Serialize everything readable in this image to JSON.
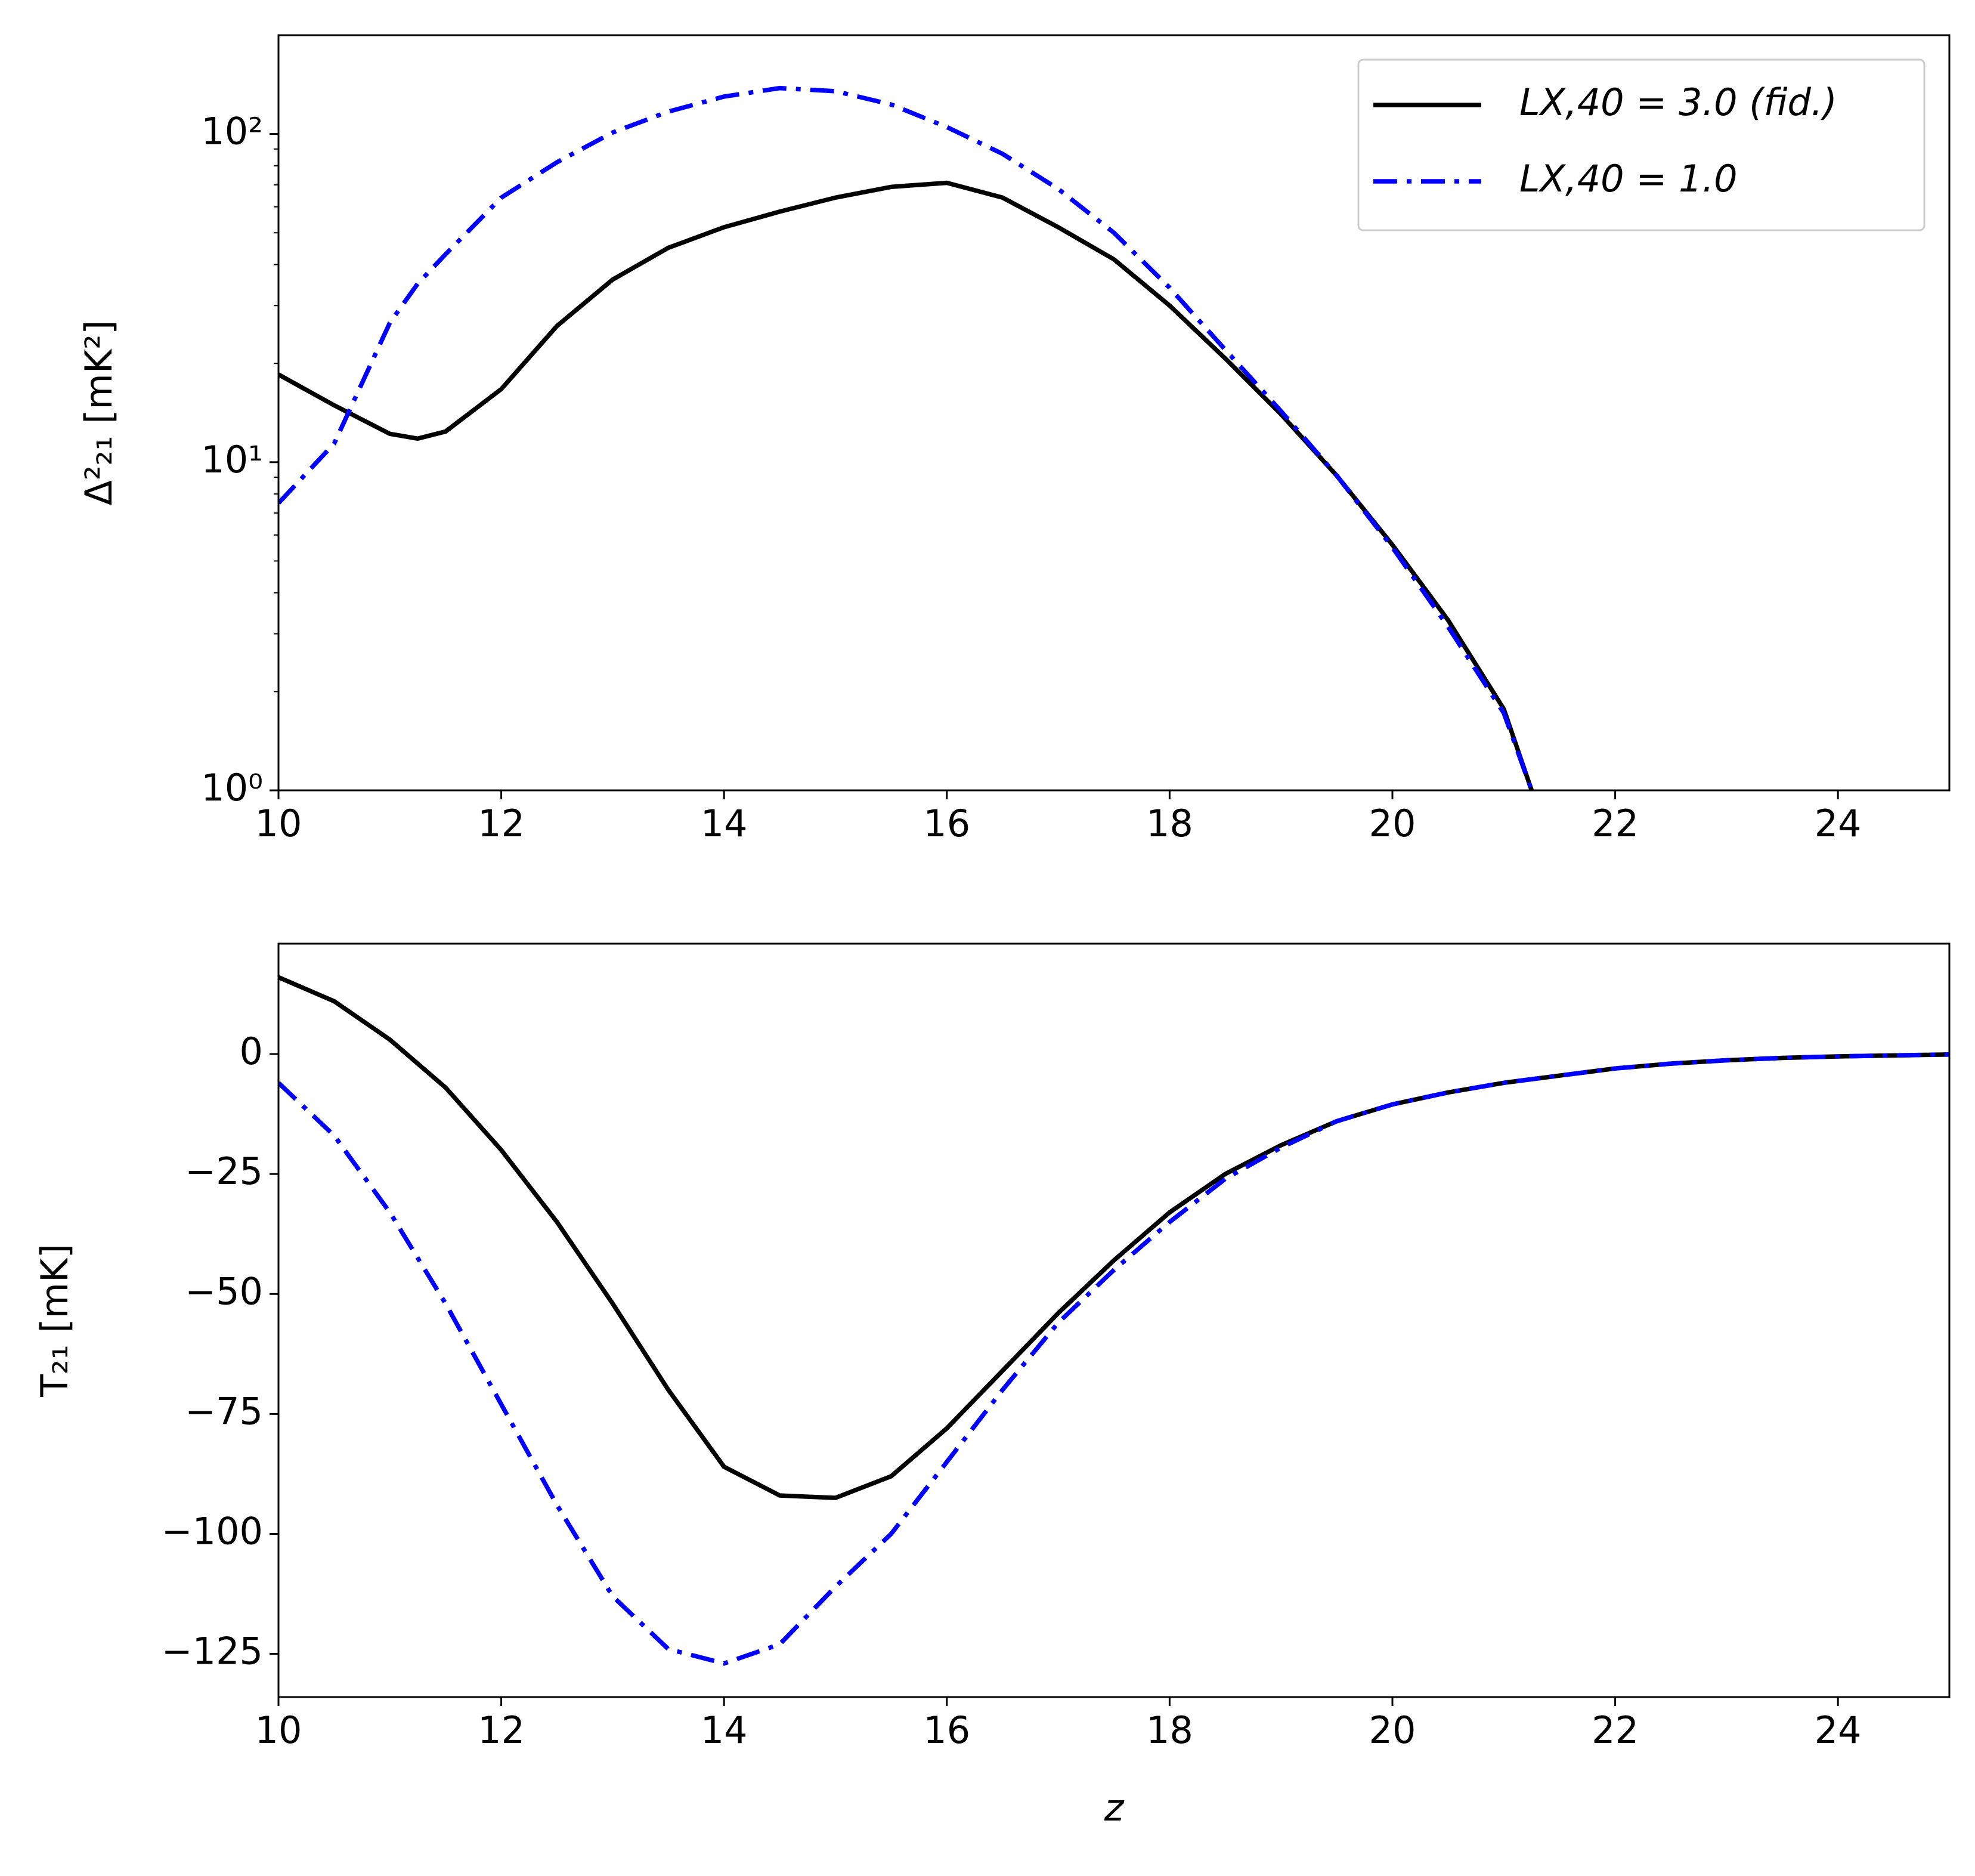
{
  "chart_data": [
    {
      "type": "line",
      "log_y": true,
      "legend": "upper right",
      "ylabel": "Δ²₂₁ [mK²]",
      "x": [
        10,
        10.5,
        11,
        11.25,
        11.5,
        12,
        12.5,
        13,
        13.5,
        14,
        14.5,
        15,
        15.5,
        16,
        16.5,
        17,
        17.5,
        18,
        18.5,
        19,
        19.5,
        20,
        20.5,
        21,
        21.25
      ],
      "xlim": [
        10,
        25
      ],
      "xticks": [
        10,
        12,
        14,
        16,
        18,
        20,
        22,
        24
      ],
      "ylim": [
        1,
        200
      ],
      "yticks": [
        {
          "value": 1,
          "label": "10⁰"
        },
        {
          "value": 10,
          "label": "10¹"
        },
        {
          "value": 100,
          "label": "10²"
        }
      ],
      "yticks_minor": [
        2,
        3,
        4,
        5,
        6,
        7,
        8,
        9,
        20,
        30,
        40,
        50,
        60,
        70,
        80,
        90
      ],
      "series": [
        {
          "name": "LX,40 = 3.0 (fid.)",
          "color": "#000000",
          "linestyle": "solid",
          "values": [
            18.5,
            14.9,
            12.2,
            11.8,
            12.4,
            16.7,
            26,
            36,
            45,
            52,
            58,
            64,
            69,
            71,
            64,
            52,
            41.5,
            30,
            20.7,
            14,
            9.1,
            5.6,
            3.3,
            1.77,
            1.0
          ]
        },
        {
          "name": "LX,40 = 1.0",
          "color": "#0000ff",
          "linestyle": "dashdot",
          "values": [
            7.5,
            11.4,
            26.6,
            35,
            43,
            64,
            82,
            101,
            117,
            130,
            138,
            135,
            123,
            105,
            87,
            68,
            50,
            34,
            22,
            14.3,
            9.1,
            5.5,
            3.15,
            1.72,
            1.0
          ]
        }
      ]
    },
    {
      "type": "line",
      "log_y": false,
      "ylabel": "T₂₁ [mK]",
      "xlabel": "z",
      "x": [
        10,
        10.5,
        11,
        11.5,
        12,
        12.5,
        13,
        13.5,
        14,
        14.5,
        15,
        15.5,
        16,
        16.5,
        17,
        17.5,
        18,
        18.5,
        19,
        19.5,
        20,
        20.5,
        21,
        21.5,
        22,
        22.5,
        23,
        23.5,
        24,
        24.5,
        25
      ],
      "xlim": [
        10,
        25
      ],
      "xticks": [
        10,
        12,
        14,
        16,
        18,
        20,
        22,
        24
      ],
      "ylim": [
        -134,
        23
      ],
      "yticks": [
        0,
        {
          "value": -25,
          "label": "−25"
        },
        {
          "value": -50,
          "label": "−50"
        },
        {
          "value": -75,
          "label": "−75"
        },
        {
          "value": -100,
          "label": "−100"
        },
        {
          "value": -125,
          "label": "−125"
        }
      ],
      "series": [
        {
          "name": "LX,40 = 3.0 (fid.)",
          "color": "#000000",
          "linestyle": "solid",
          "values": [
            16,
            11,
            3,
            -7,
            -20,
            -35,
            -52,
            -70,
            -86,
            -92,
            -92.5,
            -88,
            -78,
            -66,
            -54,
            -43,
            -33,
            -25,
            -19,
            -14,
            -10.5,
            -8,
            -6,
            -4.5,
            -3,
            -2,
            -1.3,
            -0.8,
            -0.5,
            -0.3,
            -0.1
          ]
        },
        {
          "name": "LX,40 = 1.0",
          "color": "#0000ff",
          "linestyle": "dashdot",
          "values": [
            -6,
            -17,
            -33,
            -52,
            -73,
            -94,
            -113,
            -124,
            -127,
            -123,
            -111,
            -100,
            -85,
            -70,
            -56,
            -45,
            -35,
            -26,
            -19.5,
            -14,
            -10.5,
            -8,
            -6,
            -4.5,
            -3,
            -2,
            -1.3,
            -0.8,
            -0.5,
            -0.3,
            -0.1
          ]
        }
      ]
    }
  ]
}
